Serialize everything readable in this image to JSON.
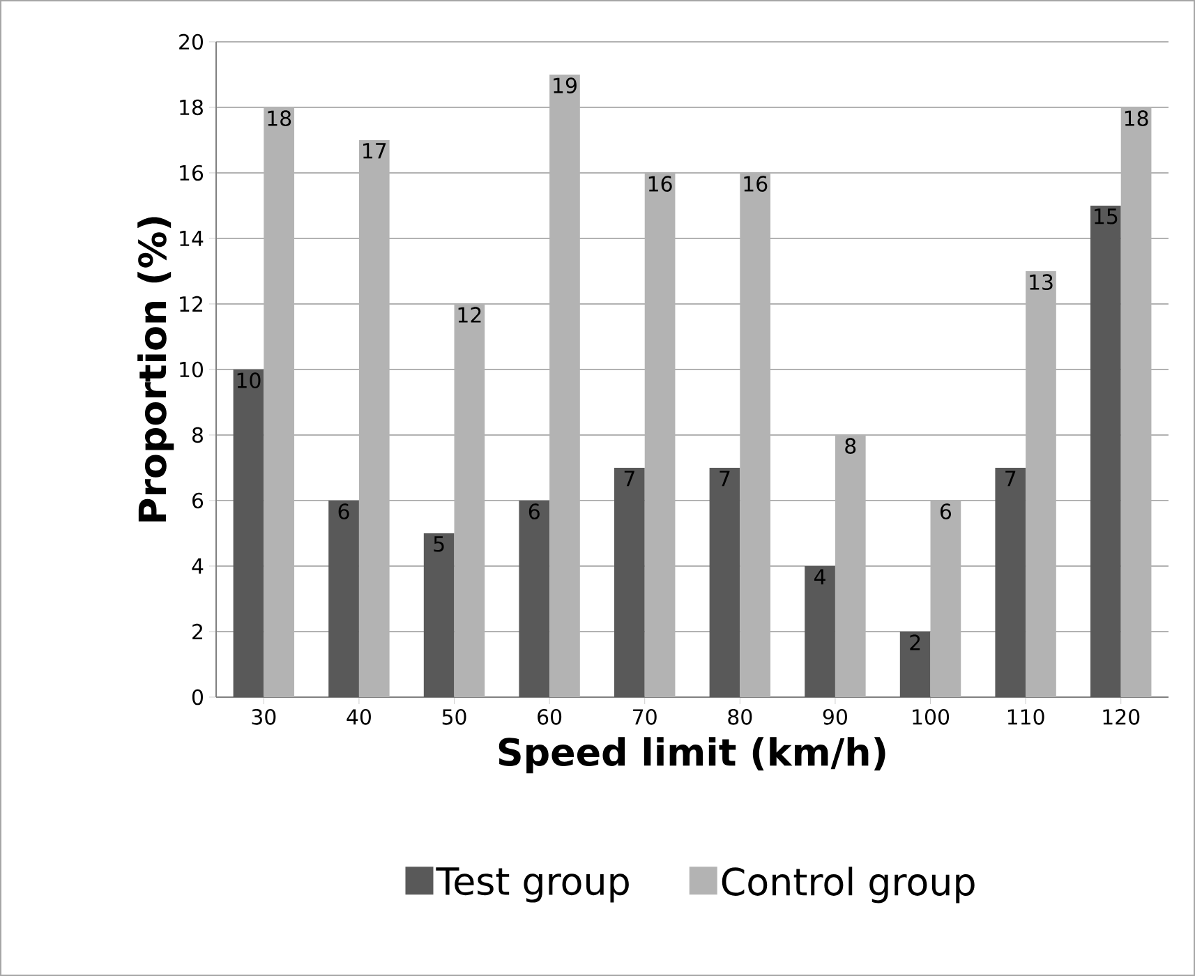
{
  "chart_data": {
    "type": "bar",
    "xlabel": "Speed limit (km/h)",
    "ylabel": "Proportion  (%)",
    "categories": [
      "30",
      "40",
      "50",
      "60",
      "70",
      "80",
      "90",
      "100",
      "110",
      "120"
    ],
    "series": [
      {
        "name": "Test group",
        "color": "#595959",
        "values": [
          10,
          6,
          5,
          6,
          7,
          7,
          4,
          2,
          7,
          15
        ]
      },
      {
        "name": "Control group",
        "color": "#b3b3b3",
        "values": [
          18,
          17,
          12,
          19,
          16,
          16,
          8,
          6,
          13,
          18
        ]
      }
    ],
    "ylim": [
      0,
      20
    ],
    "yticks": [
      0,
      2,
      4,
      6,
      8,
      10,
      12,
      14,
      16,
      18,
      20
    ],
    "grid": "y",
    "legend": "bottom",
    "data_labels": true
  }
}
